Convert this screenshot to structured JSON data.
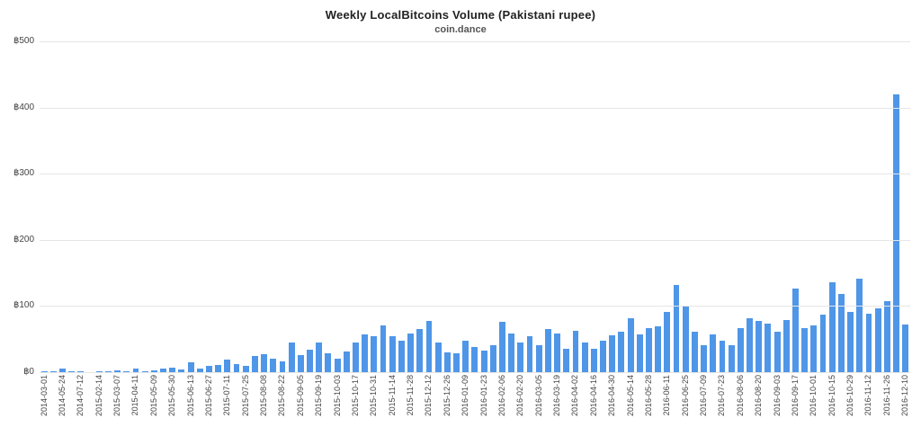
{
  "header": {
    "title": "Weekly LocalBitcoins Volume (Pakistani rupee)",
    "subtitle": "coin.dance"
  },
  "chart_data": {
    "type": "bar",
    "title": "Weekly LocalBitcoins Volume (Pakistani rupee)",
    "subtitle": "coin.dance",
    "xlabel": "",
    "ylabel": "",
    "ylim": [
      0,
      500
    ],
    "grid": true,
    "legend": "none",
    "bar_color": "#4f96e8",
    "currency_symbol": "฿",
    "yticks": [
      {
        "label": "฿0",
        "value": 0
      },
      {
        "label": "฿100",
        "value": 100
      },
      {
        "label": "฿200",
        "value": 200
      },
      {
        "label": "฿300",
        "value": 300
      },
      {
        "label": "฿400",
        "value": 400
      },
      {
        "label": "฿500",
        "value": 500
      }
    ],
    "bars": [
      {
        "label": "2014-03-01",
        "value": 2
      },
      {
        "label": "",
        "value": 1
      },
      {
        "label": "2014-05-24",
        "value": 5
      },
      {
        "label": "",
        "value": 1
      },
      {
        "label": "2014-07-12",
        "value": 2
      },
      {
        "label": "",
        "value": 0
      },
      {
        "label": "2015-02-14",
        "value": 2
      },
      {
        "label": "",
        "value": 1
      },
      {
        "label": "2015-03-07",
        "value": 3
      },
      {
        "label": "",
        "value": 2
      },
      {
        "label": "2015-04-11",
        "value": 5
      },
      {
        "label": "",
        "value": 1
      },
      {
        "label": "2015-05-09",
        "value": 3
      },
      {
        "label": "",
        "value": 6
      },
      {
        "label": "2015-05-30",
        "value": 7
      },
      {
        "label": "",
        "value": 4
      },
      {
        "label": "2015-06-13",
        "value": 15
      },
      {
        "label": "",
        "value": 6
      },
      {
        "label": "2015-06-27",
        "value": 9
      },
      {
        "label": "",
        "value": 11
      },
      {
        "label": "2015-07-11",
        "value": 19
      },
      {
        "label": "",
        "value": 12
      },
      {
        "label": "2015-07-25",
        "value": 10
      },
      {
        "label": "",
        "value": 25
      },
      {
        "label": "2015-08-08",
        "value": 27
      },
      {
        "label": "",
        "value": 20
      },
      {
        "label": "2015-08-22",
        "value": 16
      },
      {
        "label": "",
        "value": 45
      },
      {
        "label": "2015-09-05",
        "value": 26
      },
      {
        "label": "",
        "value": 34
      },
      {
        "label": "2015-09-19",
        "value": 45
      },
      {
        "label": "",
        "value": 28
      },
      {
        "label": "2015-10-03",
        "value": 20
      },
      {
        "label": "",
        "value": 31
      },
      {
        "label": "2015-10-17",
        "value": 45
      },
      {
        "label": "",
        "value": 57
      },
      {
        "label": "2015-10-31",
        "value": 55
      },
      {
        "label": "",
        "value": 71
      },
      {
        "label": "2015-11-14",
        "value": 55
      },
      {
        "label": "",
        "value": 48
      },
      {
        "label": "2015-11-28",
        "value": 59
      },
      {
        "label": "",
        "value": 65
      },
      {
        "label": "2015-12-12",
        "value": 77
      },
      {
        "label": "",
        "value": 45
      },
      {
        "label": "2015-12-26",
        "value": 30
      },
      {
        "label": "",
        "value": 29
      },
      {
        "label": "2016-01-09",
        "value": 47
      },
      {
        "label": "",
        "value": 38
      },
      {
        "label": "2016-01-23",
        "value": 33
      },
      {
        "label": "",
        "value": 41
      },
      {
        "label": "2016-02-06",
        "value": 76
      },
      {
        "label": "",
        "value": 59
      },
      {
        "label": "2016-02-20",
        "value": 45
      },
      {
        "label": "",
        "value": 55
      },
      {
        "label": "2016-03-05",
        "value": 41
      },
      {
        "label": "",
        "value": 65
      },
      {
        "label": "2016-03-19",
        "value": 59
      },
      {
        "label": "",
        "value": 35
      },
      {
        "label": "2016-04-02",
        "value": 63
      },
      {
        "label": "",
        "value": 45
      },
      {
        "label": "2016-04-16",
        "value": 35
      },
      {
        "label": "",
        "value": 47
      },
      {
        "label": "2016-04-30",
        "value": 56
      },
      {
        "label": "",
        "value": 61
      },
      {
        "label": "2016-05-14",
        "value": 81
      },
      {
        "label": "",
        "value": 57
      },
      {
        "label": "2016-05-28",
        "value": 67
      },
      {
        "label": "",
        "value": 69
      },
      {
        "label": "2016-06-11",
        "value": 91
      },
      {
        "label": "",
        "value": 132
      },
      {
        "label": "2016-06-25",
        "value": 100
      },
      {
        "label": "",
        "value": 61
      },
      {
        "label": "2016-07-09",
        "value": 41
      },
      {
        "label": "",
        "value": 57
      },
      {
        "label": "2016-07-23",
        "value": 47
      },
      {
        "label": "",
        "value": 41
      },
      {
        "label": "2016-08-06",
        "value": 66
      },
      {
        "label": "",
        "value": 81
      },
      {
        "label": "2016-08-20",
        "value": 77
      },
      {
        "label": "",
        "value": 73
      },
      {
        "label": "2016-09-03",
        "value": 61
      },
      {
        "label": "",
        "value": 79
      },
      {
        "label": "2016-09-17",
        "value": 127
      },
      {
        "label": "",
        "value": 66
      },
      {
        "label": "2016-10-01",
        "value": 71
      },
      {
        "label": "",
        "value": 87
      },
      {
        "label": "2016-10-15",
        "value": 136
      },
      {
        "label": "",
        "value": 118
      },
      {
        "label": "2016-10-29",
        "value": 91
      },
      {
        "label": "",
        "value": 141
      },
      {
        "label": "2016-11-12",
        "value": 88
      },
      {
        "label": "",
        "value": 97
      },
      {
        "label": "2016-11-26",
        "value": 108
      },
      {
        "label": "",
        "value": 420
      },
      {
        "label": "2016-12-10",
        "value": 72
      }
    ]
  }
}
